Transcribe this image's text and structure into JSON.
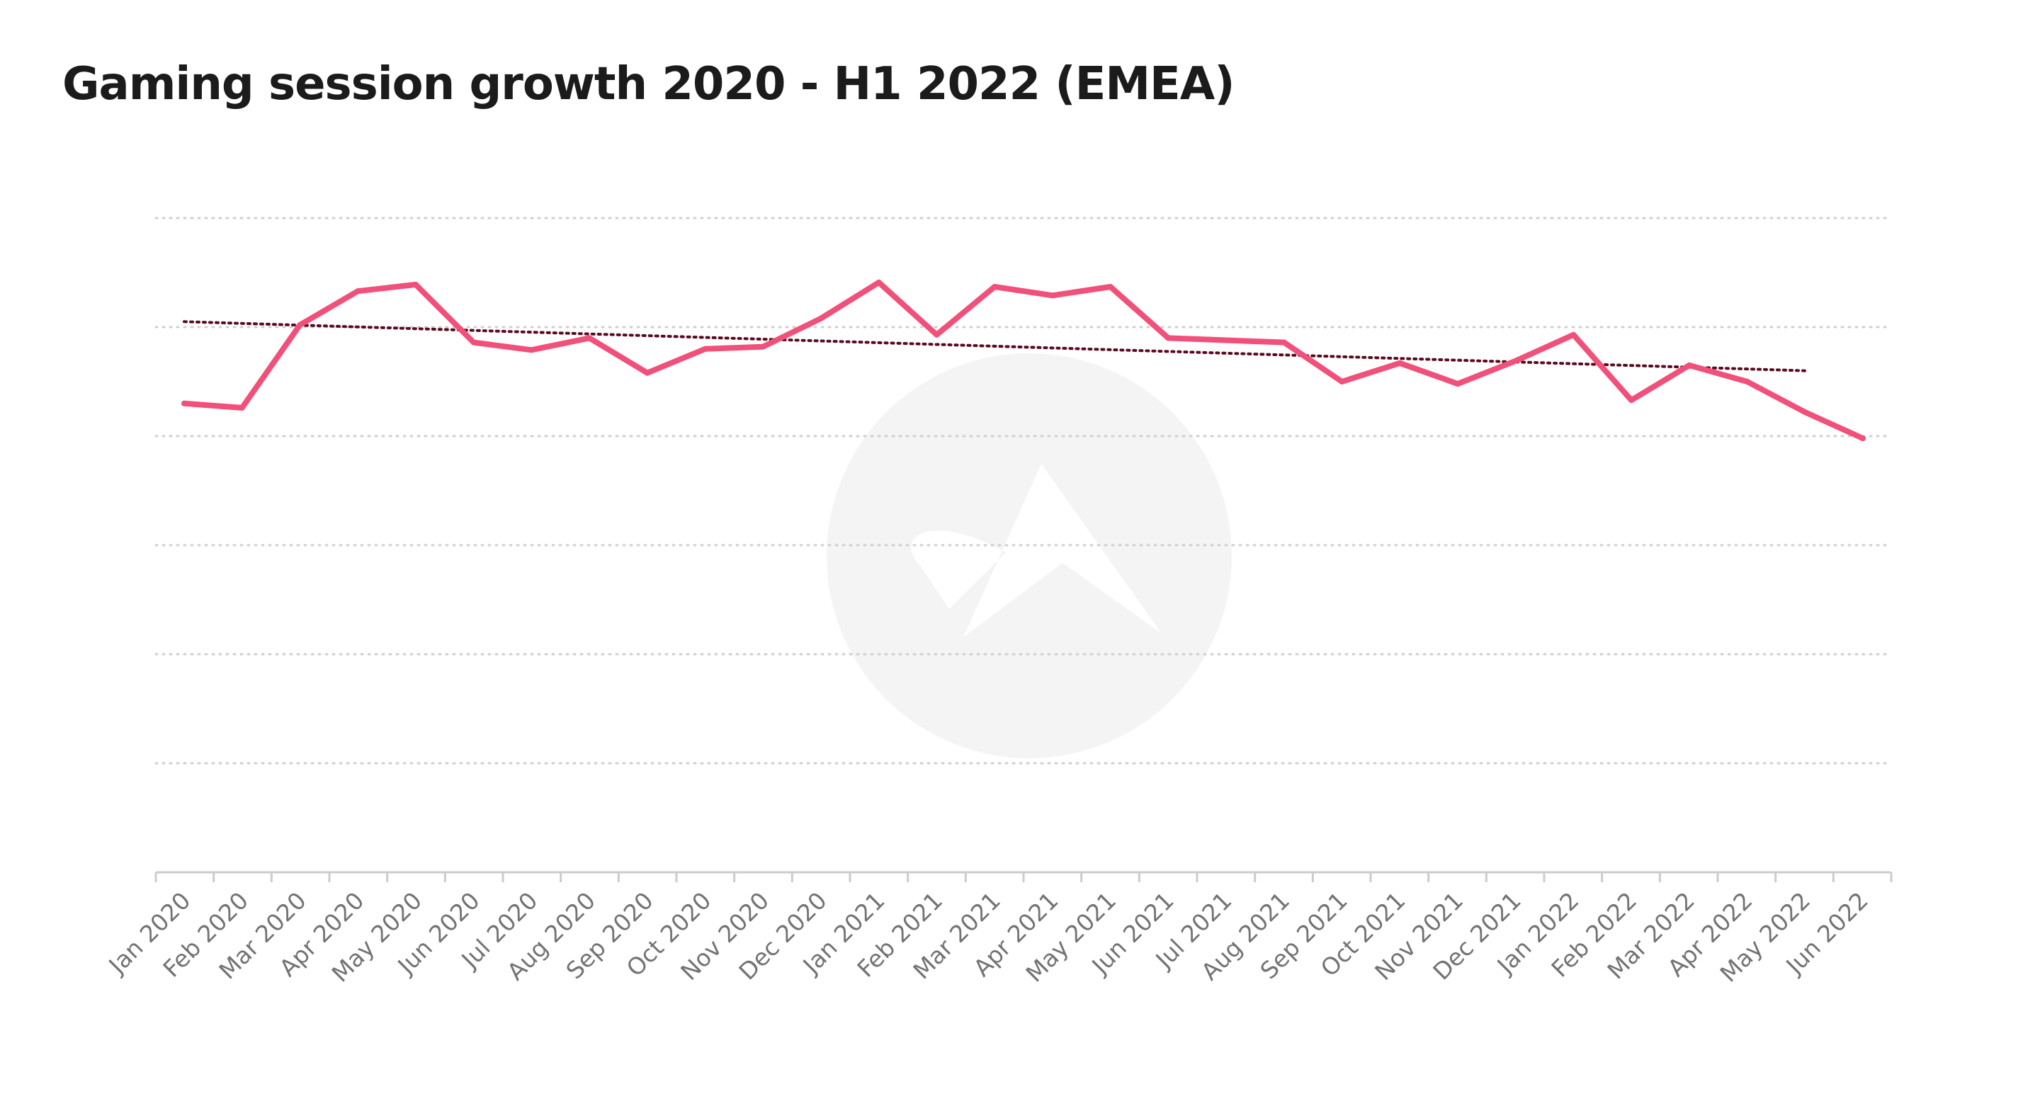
{
  "title": "Gaming session growth 2020 - H1 2022 (EMEA)",
  "colors": {
    "line": "#f0507a",
    "trendline": "#5a0a1e",
    "grid": "#cfcfcf",
    "axis": "#cccccc",
    "tick_text": "#737373",
    "watermark": "#f4f4f4"
  },
  "watermark_icon": "logo-watermark-icon",
  "chart_data": {
    "type": "line",
    "title": "Gaming session growth 2020 - H1 2022 (EMEA)",
    "xlabel": "",
    "ylabel": "",
    "y_tick_labels_shown": false,
    "grid": "horizontal-dotted",
    "ylim": [
      0,
      6
    ],
    "categories": [
      "Jan 2020",
      "Feb 2020",
      "Mar 2020",
      "Apr 2020",
      "May 2020",
      "Jun 2020",
      "Jul 2020",
      "Aug 2020",
      "Sep 2020",
      "Oct 2020",
      "Nov 2020",
      "Dec 2020",
      "Jan 2021",
      "Feb 2021",
      "Mar 2021",
      "Apr 2021",
      "May 2021",
      "Jun 2021",
      "Jul 2021",
      "Aug 2021",
      "Sep 2021",
      "Oct 2021",
      "Nov 2021",
      "Dec 2021",
      "Jan 2022",
      "Feb 2022",
      "Mar 2022",
      "Apr 2022",
      "May 2022",
      "Jun 2022"
    ],
    "series": [
      {
        "values": [
          4.3,
          4.26,
          5.02,
          5.33,
          5.39,
          4.86,
          4.79,
          4.9,
          4.58,
          4.8,
          4.82,
          5.08,
          5.41,
          4.93,
          5.37,
          5.29,
          5.37,
          4.9,
          4.88,
          4.86,
          4.5,
          4.67,
          4.48,
          4.69,
          4.93,
          4.33,
          4.65,
          4.5,
          4.22,
          3.98
        ]
      }
    ],
    "trendline": {
      "style": "dotted",
      "start": 5.05,
      "end": 4.6
    }
  }
}
